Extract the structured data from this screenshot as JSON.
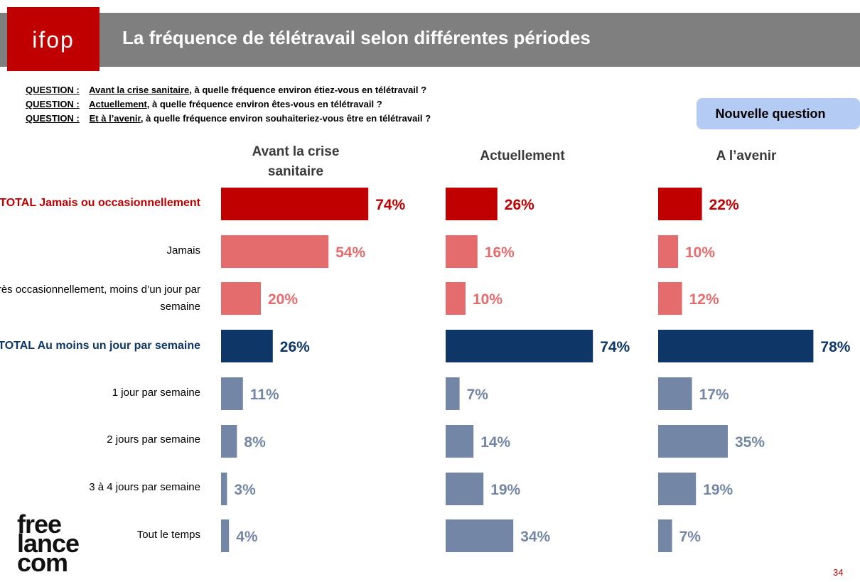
{
  "header": {
    "logo": "ifop",
    "title": "La fréquence de télétravail selon différentes périodes"
  },
  "questions": [
    {
      "label": "QUESTION :",
      "emph": "Avant la crise sanitaire",
      "rest": ", à quelle fréquence environ étiez-vous en télétravail ?"
    },
    {
      "label": "QUESTION :",
      "emph": "Actuellement",
      "rest": ", à quelle fréquence environ êtes-vous en télétravail ?"
    },
    {
      "label": "QUESTION :",
      "emph": "Et à l’avenir",
      "rest": ", à quelle fréquence environ souhaiteriez-vous être en télétravail ?"
    }
  ],
  "badge": "Nouvelle question",
  "footer": {
    "logo_lines": [
      "free",
      "lance",
      "com"
    ],
    "page_number": "34"
  },
  "colors": {
    "total_red": "#c00000",
    "light_red": "#e46c6c",
    "total_blue": "#0e3768",
    "light_blue": "#7386a6"
  },
  "chart_data": {
    "type": "bar",
    "orientation": "horizontal",
    "columns": [
      "Avant la crise sanitaire",
      "Actuellement",
      "A l’avenir"
    ],
    "categories": [
      "TOTAL Jamais ou occasionnellement",
      "Jamais",
      "Très occasionnellement, moins d’un jour par semaine",
      "TOTAL Au moins un jour par semaine",
      "1 jour par semaine",
      "2 jours par semaine",
      "3 à 4 jours par semaine",
      "Tout le temps"
    ],
    "row_styles": [
      "total_red",
      "light_red",
      "light_red",
      "total_blue",
      "light_blue",
      "light_blue",
      "light_blue",
      "light_blue"
    ],
    "series": [
      {
        "values": [
          74,
          54,
          20,
          26,
          11,
          8,
          3,
          4
        ]
      },
      {
        "values": [
          26,
          16,
          10,
          74,
          7,
          14,
          19,
          34
        ]
      },
      {
        "values": [
          22,
          10,
          12,
          78,
          17,
          35,
          19,
          7
        ]
      }
    ],
    "unit": "%"
  }
}
